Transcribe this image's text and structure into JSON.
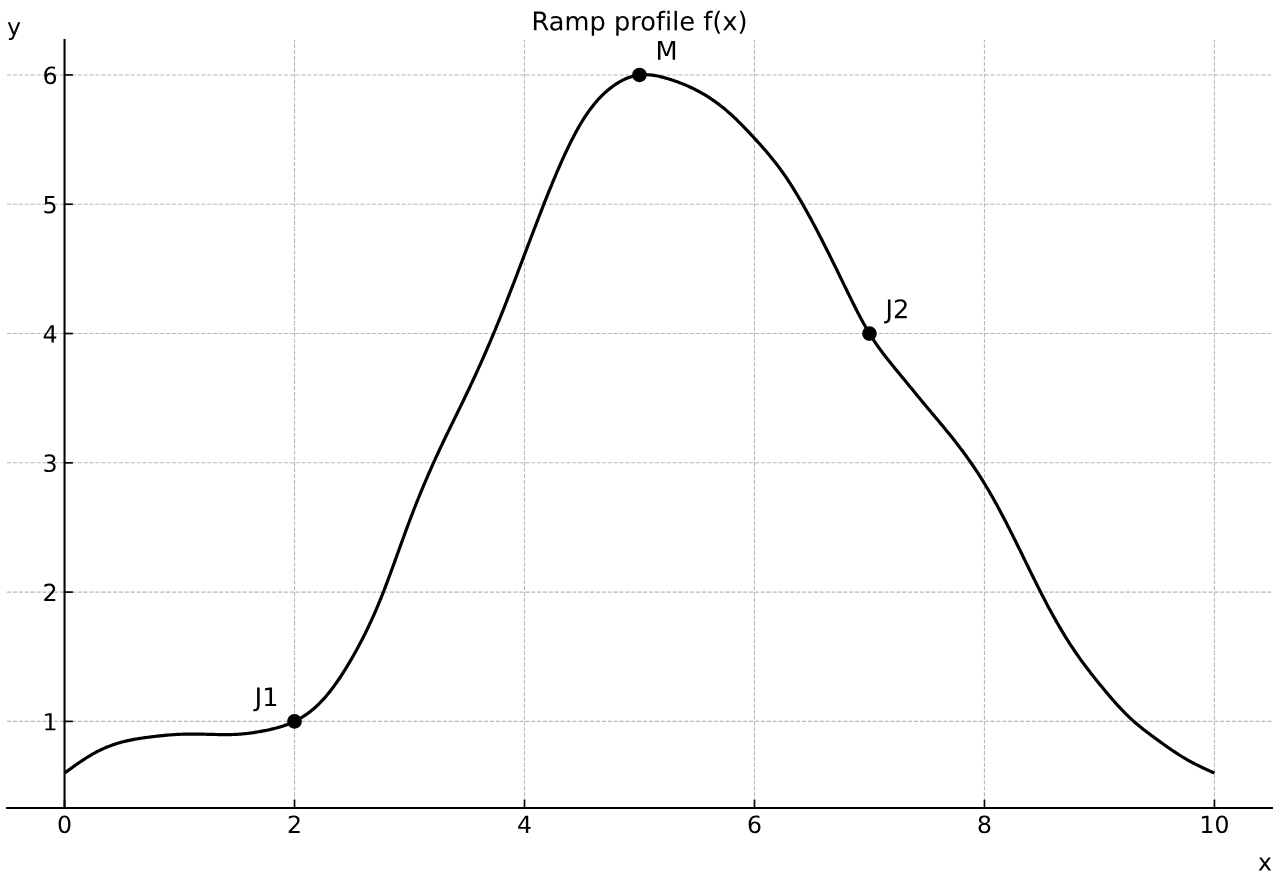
{
  "chart_data": {
    "type": "line",
    "title": "Ramp profile f(x)",
    "xlabel": "x",
    "ylabel": "y",
    "series": [
      {
        "color": "#000000",
        "x": [
          0,
          0.25,
          0.5,
          0.75,
          1,
          1.25,
          1.5,
          1.75,
          2,
          2.25,
          2.5,
          2.75,
          3,
          3.25,
          3.5,
          3.75,
          4,
          4.25,
          4.5,
          4.75,
          5,
          5.25,
          5.5,
          5.75,
          6,
          6.25,
          6.5,
          6.75,
          7,
          7.25,
          7.5,
          7.75,
          8,
          8.25,
          8.5,
          8.75,
          9,
          9.25,
          9.5,
          9.75,
          10
        ],
        "values": [
          0.6,
          0.75,
          0.84,
          0.88,
          0.9,
          0.9,
          0.9,
          0.93,
          1.0,
          1.17,
          1.49,
          1.95,
          2.55,
          3.08,
          3.54,
          4.04,
          4.61,
          5.18,
          5.64,
          5.9,
          6.0,
          5.97,
          5.88,
          5.73,
          5.51,
          5.24,
          4.87,
          4.43,
          4.0,
          3.7,
          3.43,
          3.16,
          2.84,
          2.43,
          1.98,
          1.59,
          1.29,
          1.04,
          0.86,
          0.71,
          0.6
        ]
      },
      {
        "type": "scatter",
        "color": "#000000",
        "marker": "circle",
        "x": [
          2,
          5,
          7
        ],
        "values": [
          1,
          6,
          4
        ]
      }
    ],
    "annotations": [
      {
        "text": "J1",
        "x": 2,
        "y": 1
      },
      {
        "text": "M",
        "x": 5,
        "y": 6
      },
      {
        "text": "J2",
        "x": 7,
        "y": 4
      }
    ],
    "xlim": [
      -0.5,
      10.5
    ],
    "ylim": [
      0.33,
      6.27
    ],
    "xticks": [
      0,
      2,
      4,
      6,
      8,
      10
    ],
    "yticks": [
      1,
      2,
      3,
      4,
      5,
      6
    ],
    "grid": true
  }
}
